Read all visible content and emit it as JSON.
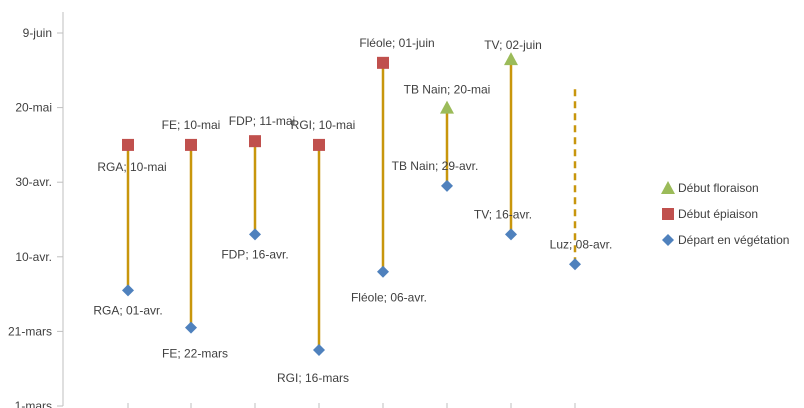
{
  "chart_data": {
    "type": "scatter",
    "y_tick_labels": [
      "1-mars",
      "21-mars",
      "10-avr.",
      "30-avr.",
      "20-mai",
      "9-juin"
    ],
    "y_ticks_day_of_year": [
      60,
      80,
      100,
      120,
      140,
      160
    ],
    "ylim": [
      60,
      162
    ],
    "categories": [
      "RGA",
      "FE",
      "FDP",
      "RGI",
      "Fléole",
      "TB Nain",
      "TV",
      "Luz"
    ],
    "series": [
      {
        "name": "Début floraison",
        "color": "#9BBB59",
        "marker": "triangle",
        "dates": [
          null,
          null,
          null,
          null,
          null,
          "2014-05-20",
          "2014-06-02",
          null
        ],
        "labels": [
          null,
          null,
          null,
          null,
          null,
          "TB Nain; 20-mai",
          "TV; 02-juin",
          null
        ]
      },
      {
        "name": "Début épiaison",
        "color": "#C0504D",
        "marker": "square",
        "dates": [
          "2014-05-10",
          "2014-05-10",
          "2014-05-11",
          "2014-05-10",
          "2014-06-01",
          null,
          null,
          null
        ],
        "labels": [
          "RGA; 10-mai",
          "FE; 10-mai",
          "FDP; 11-mai",
          "RGI; 10-mai",
          "Fléole; 01-juin",
          null,
          null,
          null
        ]
      },
      {
        "name": "Départ en végétation",
        "color": "#4F81BD",
        "marker": "diamond",
        "dates": [
          "2014-04-01",
          "2014-03-22",
          "2014-04-16",
          "2014-03-16",
          "2014-04-06",
          "2014-04-29",
          "2014-04-16",
          "2014-04-08"
        ],
        "labels": [
          "RGA; 01-avr.",
          "FE; 22-mars",
          "FDP; 16-avr.",
          "RGI; 16-mars",
          "Fléole; 06-avr.",
          "TB Nain; 29-avr.",
          "TV; 16-avr.",
          "Luz; 08-avr."
        ]
      }
    ],
    "connectors": [
      {
        "from_date": "2014-04-01",
        "to_date": "2014-05-10",
        "style": "solid"
      },
      {
        "from_date": "2014-03-22",
        "to_date": "2014-05-10",
        "style": "solid"
      },
      {
        "from_date": "2014-04-16",
        "to_date": "2014-05-11",
        "style": "solid"
      },
      {
        "from_date": "2014-03-16",
        "to_date": "2014-05-10",
        "style": "solid"
      },
      {
        "from_date": "2014-04-06",
        "to_date": "2014-06-01",
        "style": "solid"
      },
      {
        "from_date": "2014-04-29",
        "to_date": "2014-05-20",
        "style": "solid"
      },
      {
        "from_date": "2014-04-16",
        "to_date": "2014-06-02",
        "style": "solid"
      },
      {
        "from_date": "2014-04-08",
        "to_date": "2014-05-26",
        "style": "dashed"
      }
    ],
    "connector_color": "#C8960C",
    "legend_position": "right",
    "grid": false
  }
}
